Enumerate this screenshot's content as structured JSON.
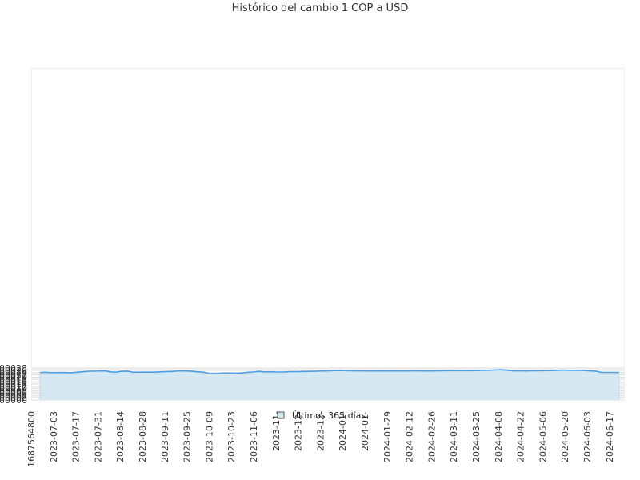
{
  "chart_data": {
    "type": "area",
    "title": "Histórico del cambio 1 COP a USD",
    "ylim": [
      0.0,
      0.00029
    ],
    "yticks": [
      "0.000000",
      "0.000002",
      "0.000004",
      "0.000006",
      "0.000008",
      "0.000010",
      "0.000012",
      "0.000014",
      "0.000016",
      "0.000018",
      "0.000020",
      "0.000022",
      "0.000024",
      "0.000026",
      "0.000028"
    ],
    "ytick_values": [
      0,
      2e-06,
      4e-06,
      6e-06,
      8e-06,
      1e-05,
      1.2e-05,
      1.4e-05,
      1.6e-05,
      1.8e-05,
      2e-05,
      2.2e-05,
      2.4e-05,
      2.6e-05,
      2.8e-05
    ],
    "xticks": [
      "1687564800",
      "2023-07-03",
      "2023-07-17",
      "2023-07-31",
      "2023-08-14",
      "2023-08-28",
      "2023-09-11",
      "2023-09-25",
      "2023-10-09",
      "2023-10-23",
      "2023-11-06",
      "2023-11-",
      "2023-12-",
      "2023-12-",
      "2024-01-",
      "2024-01-",
      "2024-01-29",
      "2024-02-12",
      "2024-02-26",
      "2024-03-11",
      "2024-03-25",
      "2024-04-08",
      "2024-04-22",
      "2024-05-06",
      "2024-05-20",
      "2024-06-03",
      "2024-06-17"
    ],
    "series": [
      {
        "name": "Últimos 365 días",
        "x": [
          "2023-06-24",
          "2023-06-27",
          "2023-07-01",
          "2023-07-05",
          "2023-07-09",
          "2023-07-13",
          "2023-07-17",
          "2023-07-21",
          "2023-07-25",
          "2023-07-28",
          "2023-08-01",
          "2023-08-04",
          "2023-08-08",
          "2023-08-11",
          "2023-08-14",
          "2023-08-18",
          "2023-08-22",
          "2023-08-26",
          "2023-08-30",
          "2023-09-03",
          "2023-09-07",
          "2023-09-11",
          "2023-09-15",
          "2023-09-19",
          "2023-09-23",
          "2023-09-27",
          "2023-10-01",
          "2023-10-05",
          "2023-10-09",
          "2023-10-13",
          "2023-10-17",
          "2023-10-21",
          "2023-10-25",
          "2023-10-29",
          "2023-11-02",
          "2023-11-05",
          "2023-11-09",
          "2023-11-13",
          "2023-11-17",
          "2023-11-21",
          "2023-11-25",
          "2023-11-29",
          "2023-12-03",
          "2023-12-07",
          "2023-12-11",
          "2023-12-15",
          "2023-12-19",
          "2023-12-23",
          "2023-12-27",
          "2023-12-31",
          "2024-01-04",
          "2024-01-08",
          "2024-01-12",
          "2024-01-16",
          "2024-01-20",
          "2024-01-24",
          "2024-01-28",
          "2024-02-01",
          "2024-02-05",
          "2024-02-09",
          "2024-02-13",
          "2024-02-17",
          "2024-02-21",
          "2024-02-25",
          "2024-02-29",
          "2024-03-04",
          "2024-03-08",
          "2024-03-12",
          "2024-03-16",
          "2024-03-20",
          "2024-03-24",
          "2024-03-28",
          "2024-04-01",
          "2024-04-05",
          "2024-04-09",
          "2024-04-13",
          "2024-04-17",
          "2024-04-21",
          "2024-04-25",
          "2024-04-29",
          "2024-05-03",
          "2024-05-07",
          "2024-05-11",
          "2024-05-15",
          "2024-05-19",
          "2024-05-23",
          "2024-05-27",
          "2024-05-31",
          "2024-06-04",
          "2024-06-08",
          "2024-06-12",
          "2024-06-16",
          "2024-06-20",
          "2024-06-23"
        ],
        "values": [
          2.4e-05,
          2.43e-05,
          2.4e-05,
          2.4e-05,
          2.41e-05,
          2.39e-05,
          2.43e-05,
          2.47e-05,
          2.52e-05,
          2.52e-05,
          2.54e-05,
          2.55e-05,
          2.46e-05,
          2.44e-05,
          2.51e-05,
          2.53e-05,
          2.43e-05,
          2.44e-05,
          2.44e-05,
          2.44e-05,
          2.46e-05,
          2.49e-05,
          2.5e-05,
          2.54e-05,
          2.55e-05,
          2.53e-05,
          2.47e-05,
          2.44e-05,
          2.31e-05,
          2.32e-05,
          2.35e-05,
          2.36e-05,
          2.34e-05,
          2.37e-05,
          2.43e-05,
          2.45e-05,
          2.51e-05,
          2.46e-05,
          2.47e-05,
          2.45e-05,
          2.46e-05,
          2.49e-05,
          2.49e-05,
          2.5e-05,
          2.51e-05,
          2.52e-05,
          2.54e-05,
          2.55e-05,
          2.58e-05,
          2.58e-05,
          2.56e-05,
          2.55e-05,
          2.55e-05,
          2.54e-05,
          2.54e-05,
          2.55e-05,
          2.54e-05,
          2.55e-05,
          2.54e-05,
          2.54e-05,
          2.55e-05,
          2.55e-05,
          2.54e-05,
          2.54e-05,
          2.55e-05,
          2.56e-05,
          2.57e-05,
          2.57e-05,
          2.57e-05,
          2.58e-05,
          2.57e-05,
          2.59e-05,
          2.6e-05,
          2.63e-05,
          2.65e-05,
          2.61e-05,
          2.55e-05,
          2.56e-05,
          2.54e-05,
          2.56e-05,
          2.56e-05,
          2.57e-05,
          2.58e-05,
          2.6e-05,
          2.62e-05,
          2.6e-05,
          2.59e-05,
          2.59e-05,
          2.55e-05,
          2.53e-05,
          2.42e-05,
          2.42e-05,
          2.42e-05,
          2.41e-05
        ]
      }
    ],
    "legend": {
      "label": "Últimos 365 días",
      "position": "bottom-center"
    },
    "grid": true,
    "colors": {
      "line": "#4a9ee3",
      "fill": "#d3e7f1",
      "band_alt": "#f3f3f3",
      "band": "#ffffff",
      "grid": "#e0e0e0"
    }
  }
}
